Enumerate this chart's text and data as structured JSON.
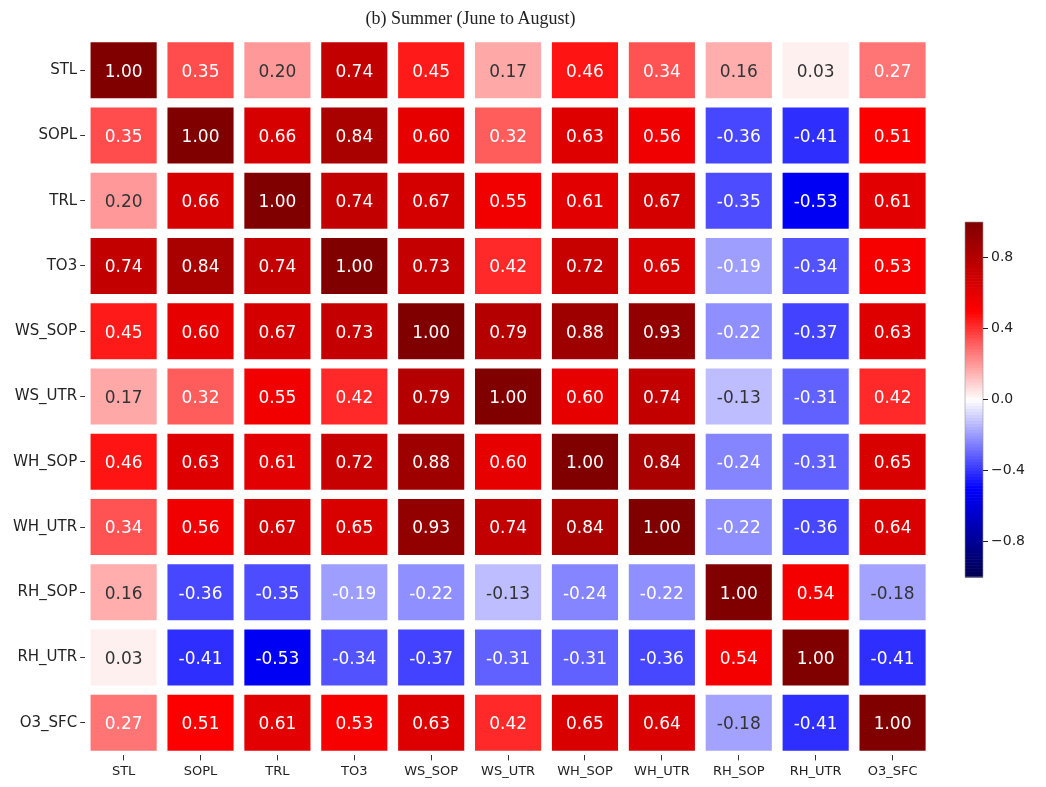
{
  "chart_data": {
    "type": "heatmap",
    "title": "(b) Summer (June to August)",
    "categories": [
      "STL",
      "SOPL",
      "TRL",
      "TO3",
      "WS_SOP",
      "WS_UTR",
      "WH_SOP",
      "WH_UTR",
      "RH_SOP",
      "RH_UTR",
      "O3_SFC"
    ],
    "y_categories": [
      "STL",
      "SOPL",
      "TRL",
      "TO3",
      "WS_SOP",
      "WS_UTR",
      "WH_SOP",
      "WH_UTR",
      "RH_SOP",
      "RH_UTR",
      "O3_SFC"
    ],
    "cells": [
      [
        1.0,
        0.35,
        0.2,
        0.74,
        0.45,
        0.17,
        0.46,
        0.34,
        0.16,
        0.03,
        0.27
      ],
      [
        0.35,
        1.0,
        0.66,
        0.84,
        0.6,
        0.32,
        0.63,
        0.56,
        -0.36,
        -0.41,
        0.51
      ],
      [
        0.2,
        0.66,
        1.0,
        0.74,
        0.67,
        0.55,
        0.61,
        0.67,
        -0.35,
        -0.53,
        0.61
      ],
      [
        0.74,
        0.84,
        0.74,
        1.0,
        0.73,
        0.42,
        0.72,
        0.65,
        -0.19,
        -0.34,
        0.53
      ],
      [
        0.45,
        0.6,
        0.67,
        0.73,
        1.0,
        0.79,
        0.88,
        0.93,
        -0.22,
        -0.37,
        0.63
      ],
      [
        0.17,
        0.32,
        0.55,
        0.42,
        0.79,
        1.0,
        0.6,
        0.74,
        -0.13,
        -0.31,
        0.42
      ],
      [
        0.46,
        0.63,
        0.61,
        0.72,
        0.88,
        0.6,
        1.0,
        0.84,
        -0.24,
        -0.31,
        0.65
      ],
      [
        0.34,
        0.56,
        0.67,
        0.65,
        0.93,
        0.74,
        0.84,
        1.0,
        -0.22,
        -0.36,
        0.64
      ],
      [
        0.16,
        -0.36,
        -0.35,
        -0.19,
        -0.22,
        -0.13,
        -0.24,
        -0.22,
        1.0,
        0.54,
        -0.18
      ],
      [
        0.03,
        -0.41,
        -0.53,
        -0.34,
        -0.37,
        -0.31,
        -0.31,
        -0.36,
        0.54,
        1.0,
        -0.41
      ],
      [
        0.27,
        0.51,
        0.61,
        0.53,
        0.63,
        0.42,
        0.65,
        0.64,
        -0.18,
        -0.41,
        1.0
      ]
    ],
    "cell_labels": [
      [
        "1.00",
        "0.35",
        "0.20",
        "0.74",
        "0.45",
        "0.17",
        "0.46",
        "0.34",
        "0.16",
        "0.03",
        "0.27"
      ],
      [
        "0.35",
        "1.00",
        "0.66",
        "0.84",
        "0.60",
        "0.32",
        "0.63",
        "0.56",
        "-0.36",
        "-0.41",
        "0.51"
      ],
      [
        "0.20",
        "0.66",
        "1.00",
        "0.74",
        "0.67",
        "0.55",
        "0.61",
        "0.67",
        "-0.35",
        "-0.53",
        "0.61"
      ],
      [
        "0.74",
        "0.84",
        "0.74",
        "1.00",
        "0.73",
        "0.42",
        "0.72",
        "0.65",
        "-0.19",
        "-0.34",
        "0.53"
      ],
      [
        "0.45",
        "0.60",
        "0.67",
        "0.73",
        "1.00",
        "0.79",
        "0.88",
        "0.93",
        "-0.22",
        "-0.37",
        "0.63"
      ],
      [
        "0.17",
        "0.32",
        "0.55",
        "0.42",
        "0.79",
        "1.00",
        "0.60",
        "0.74",
        "-0.13",
        "-0.31",
        "0.42"
      ],
      [
        "0.46",
        "0.63",
        "0.61",
        "0.72",
        "0.88",
        "0.60",
        "1.00",
        "0.84",
        "-0.24",
        "-0.31",
        "0.65"
      ],
      [
        "0.34",
        "0.56",
        "0.67",
        "0.65",
        "0.93",
        "0.74",
        "0.84",
        "1.00",
        "-0.22",
        "-0.36",
        "0.64"
      ],
      [
        "0.16",
        "-0.36",
        "-0.35",
        "-0.19",
        "-0.22",
        "-0.13",
        "-0.24",
        "-0.22",
        "1.00",
        "0.54",
        "-0.18"
      ],
      [
        "0.03",
        "-0.41",
        "-0.53",
        "-0.34",
        "-0.37",
        "-0.31",
        "-0.31",
        "-0.36",
        "0.54",
        "1.00",
        "-0.41"
      ],
      [
        "0.27",
        "0.51",
        "0.61",
        "0.53",
        "0.63",
        "0.42",
        "0.65",
        "0.64",
        "-0.18",
        "-0.41",
        "1.00"
      ]
    ],
    "clim": [
      -1,
      1
    ],
    "cticks": [
      {
        "value": -0.8,
        "label": "−0.8"
      },
      {
        "value": -0.4,
        "label": "−0.4"
      },
      {
        "value": 0,
        "label": "0.0"
      },
      0.4,
      0.8
    ]
  }
}
